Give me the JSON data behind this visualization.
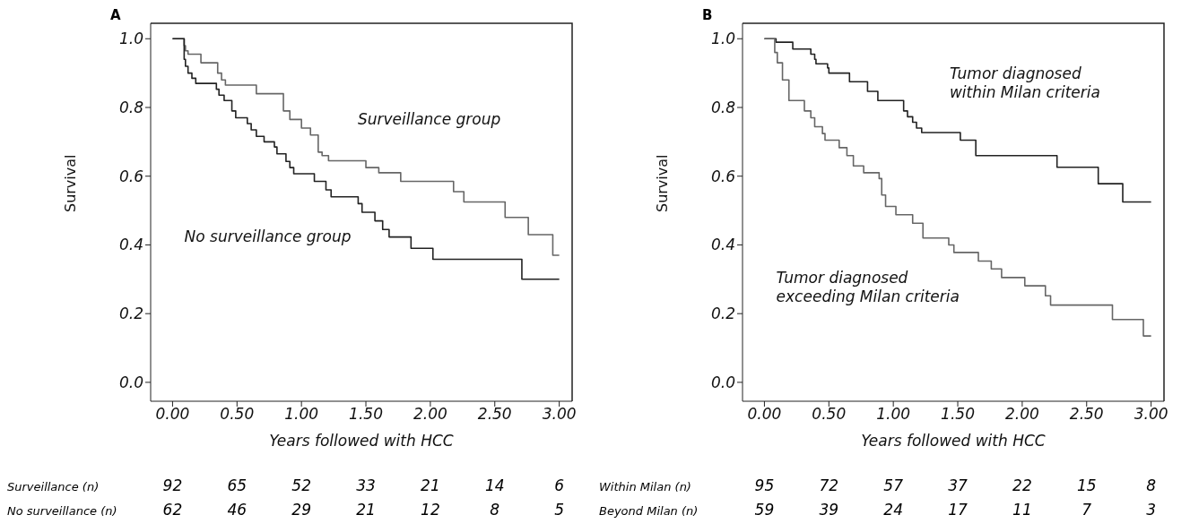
{
  "chart_data": [
    {
      "type": "step",
      "title": "A",
      "xlabel": "Years followed with HCC",
      "ylabel": "Survival",
      "xlim": [
        -0.17,
        3.1
      ],
      "ylim": [
        -0.055,
        1.045
      ],
      "xticks": [
        {
          "value": 0,
          "label": "0.00"
        },
        {
          "value": 0.5,
          "label": "0.50"
        },
        {
          "value": 1,
          "label": "1.00"
        },
        {
          "value": 1.5,
          "label": "1.50"
        },
        {
          "value": 2,
          "label": "2.00"
        },
        {
          "value": 2.5,
          "label": "2.50"
        },
        {
          "value": 3,
          "label": "3.00"
        }
      ],
      "yticks": [
        {
          "value": 0,
          "label": "0.0"
        },
        {
          "value": 0.2,
          "label": "0.2"
        },
        {
          "value": 0.4,
          "label": "0.4"
        },
        {
          "value": 0.6,
          "label": "0.6"
        },
        {
          "value": 0.8,
          "label": "0.8"
        },
        {
          "value": 1,
          "label": "1.0"
        }
      ],
      "series": [
        {
          "name": "Surveillance group",
          "color": "#666666",
          "x": [
            0,
            0.09,
            0.1,
            0.12,
            0.22,
            0.35,
            0.38,
            0.41,
            0.65,
            0.86,
            0.91,
            1.0,
            1.07,
            1.13,
            1.16,
            1.21,
            1.5,
            1.6,
            1.77,
            2.18,
            2.26,
            2.58,
            2.76,
            2.95,
            3.0
          ],
          "values": [
            1.0,
            0.98,
            0.965,
            0.955,
            0.93,
            0.9,
            0.88,
            0.865,
            0.84,
            0.79,
            0.765,
            0.74,
            0.72,
            0.67,
            0.66,
            0.645,
            0.625,
            0.61,
            0.585,
            0.555,
            0.525,
            0.48,
            0.43,
            0.37,
            0.37
          ]
        },
        {
          "name": "No surveillance group",
          "color": "#222222",
          "x": [
            0,
            0.09,
            0.1,
            0.12,
            0.15,
            0.18,
            0.34,
            0.36,
            0.4,
            0.46,
            0.49,
            0.58,
            0.61,
            0.65,
            0.71,
            0.79,
            0.81,
            0.88,
            0.91,
            0.94,
            1.1,
            1.19,
            1.23,
            1.44,
            1.47,
            1.57,
            1.63,
            1.68,
            1.85,
            2.02,
            2.71,
            3.0
          ],
          "values": [
            1.0,
            0.94,
            0.92,
            0.9,
            0.885,
            0.87,
            0.853,
            0.836,
            0.82,
            0.79,
            0.77,
            0.753,
            0.735,
            0.716,
            0.7,
            0.685,
            0.665,
            0.643,
            0.625,
            0.607,
            0.585,
            0.56,
            0.54,
            0.52,
            0.495,
            0.47,
            0.445,
            0.423,
            0.39,
            0.358,
            0.3,
            0.3
          ]
        }
      ],
      "annotations": [
        "Surveillance (n)",
        "92",
        "65",
        "52",
        "33",
        "21",
        "14",
        "6",
        "No surveillance (n)",
        "62",
        "46",
        "29",
        "21",
        "12",
        "8",
        "5"
      ]
    },
    {
      "type": "step",
      "title": "B",
      "xlabel": "Years followed with HCC",
      "ylabel": "Survival",
      "xlim": [
        -0.17,
        3.1
      ],
      "ylim": [
        -0.055,
        1.045
      ],
      "xticks": [
        {
          "value": 0,
          "label": "0.00"
        },
        {
          "value": 0.5,
          "label": "0.50"
        },
        {
          "value": 1,
          "label": "1.00"
        },
        {
          "value": 1.5,
          "label": "1.50"
        },
        {
          "value": 2,
          "label": "2.00"
        },
        {
          "value": 2.5,
          "label": "2.50"
        },
        {
          "value": 3,
          "label": "3.00"
        }
      ],
      "yticks": [
        {
          "value": 0,
          "label": "0.0"
        },
        {
          "value": 0.2,
          "label": "0.2"
        },
        {
          "value": 0.4,
          "label": "0.4"
        },
        {
          "value": 0.6,
          "label": "0.6"
        },
        {
          "value": 0.8,
          "label": "0.8"
        },
        {
          "value": 1,
          "label": "1.0"
        }
      ],
      "series": [
        {
          "name": "Tumor diagnosed\nwithin Milan criteria",
          "color": "#222222",
          "x": [
            0,
            0.09,
            0.22,
            0.36,
            0.39,
            0.4,
            0.49,
            0.5,
            0.66,
            0.8,
            0.88,
            1.08,
            1.11,
            1.15,
            1.18,
            1.22,
            1.52,
            1.64,
            2.27,
            2.59,
            2.78,
            3.0
          ],
          "values": [
            1.0,
            0.99,
            0.97,
            0.955,
            0.94,
            0.927,
            0.915,
            0.9,
            0.875,
            0.847,
            0.82,
            0.79,
            0.773,
            0.757,
            0.74,
            0.727,
            0.705,
            0.66,
            0.626,
            0.578,
            0.525,
            0.525
          ]
        },
        {
          "name": "Tumor diagnosed\nexceeding Milan criteria",
          "color": "#666666",
          "x": [
            0,
            0.08,
            0.1,
            0.14,
            0.19,
            0.31,
            0.36,
            0.39,
            0.45,
            0.47,
            0.58,
            0.64,
            0.69,
            0.77,
            0.89,
            0.91,
            0.94,
            1.02,
            1.15,
            1.23,
            1.43,
            1.47,
            1.66,
            1.76,
            1.84,
            2.02,
            2.18,
            2.22,
            2.7,
            2.94,
            3.0
          ],
          "values": [
            1.0,
            0.96,
            0.93,
            0.88,
            0.82,
            0.79,
            0.77,
            0.744,
            0.724,
            0.705,
            0.683,
            0.66,
            0.63,
            0.61,
            0.593,
            0.545,
            0.512,
            0.488,
            0.463,
            0.42,
            0.4,
            0.378,
            0.353,
            0.33,
            0.305,
            0.281,
            0.252,
            0.225,
            0.183,
            0.135,
            0.135
          ]
        }
      ],
      "annotations": [
        "Within Milan (n)",
        "95",
        "72",
        "57",
        "37",
        "22",
        "15",
        "8",
        "Beyond Milan (n)",
        "59",
        "39",
        "24",
        "17",
        "11",
        "7",
        "3"
      ]
    }
  ]
}
